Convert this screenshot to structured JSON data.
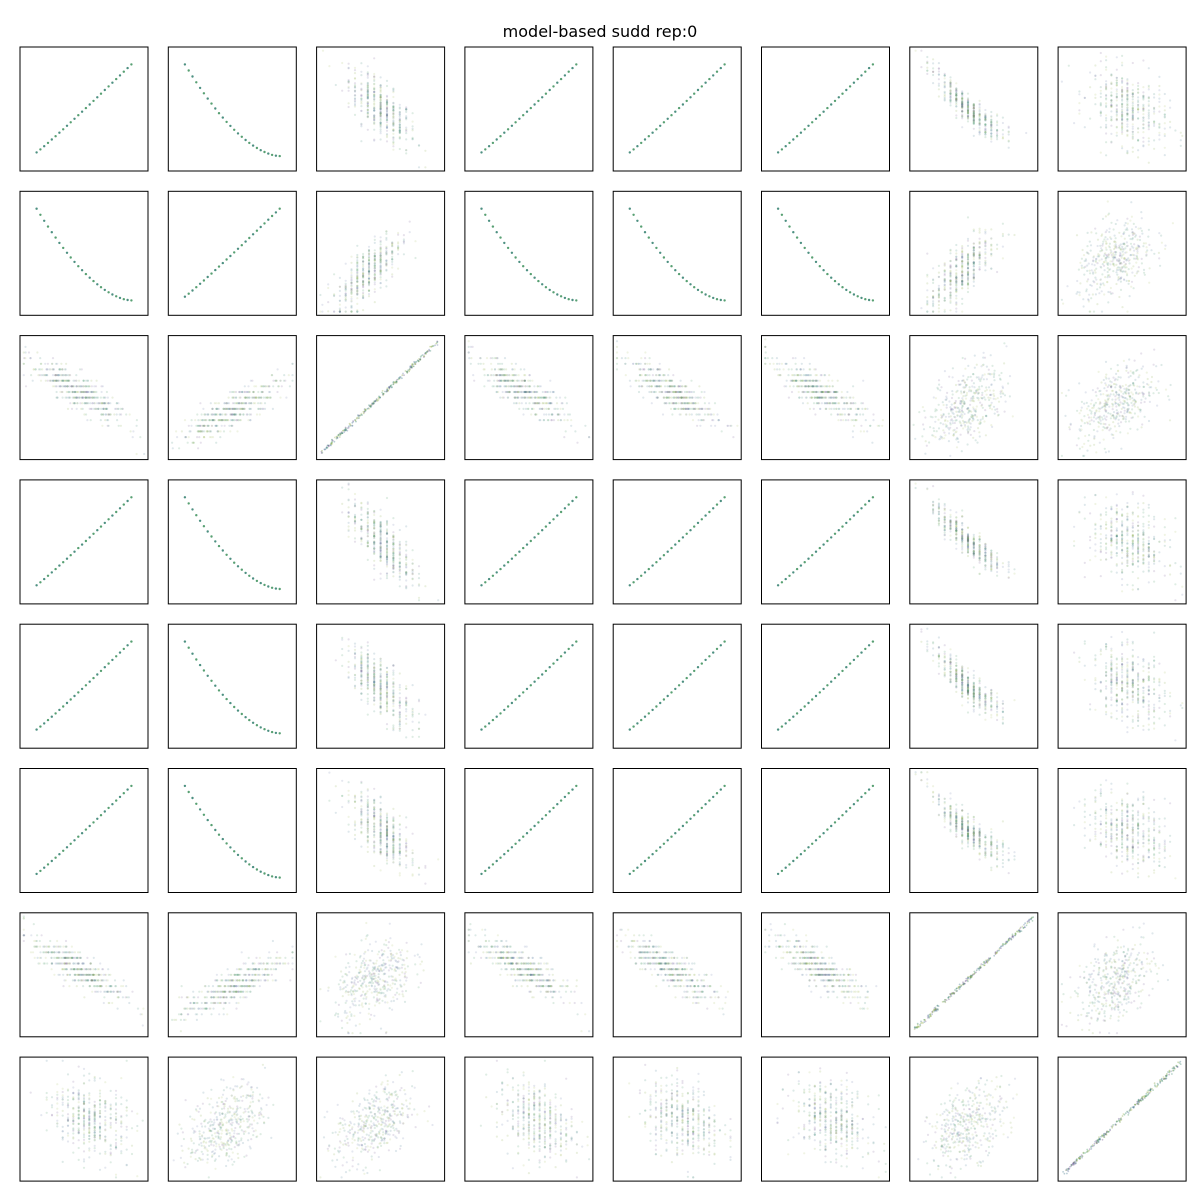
{
  "chart_data": {
    "type": "scatter",
    "title": "model-based sudd rep:0",
    "layout": "scatter-matrix",
    "rows": 8,
    "cols": 8,
    "axes_ticks": "none",
    "grid": false,
    "legend": "none",
    "point_colors": [
      "#2e7d6b",
      "#3b8f5a",
      "#7a9f3a",
      "#5b6fa0",
      "#6b4c8a",
      "#3a6f86",
      "#a3b85a"
    ],
    "panel_pairs": [
      [
        "pos",
        "neg",
        "tri",
        "pos",
        "pos",
        "pos",
        "negcurve",
        "negblob"
      ],
      [
        "neg",
        "pos",
        "poscurve",
        "neg",
        "neg",
        "neg",
        "poscurve",
        "posblob"
      ],
      [
        "negband",
        "posband",
        "diag",
        "negband",
        "negband",
        "negband",
        "posblob",
        "posblob"
      ],
      [
        "pos",
        "neg",
        "tri",
        "pos",
        "pos",
        "pos",
        "negcurve",
        "negblob"
      ],
      [
        "pos",
        "neg",
        "tri",
        "pos",
        "pos",
        "pos",
        "negcurve",
        "negblob"
      ],
      [
        "pos",
        "neg",
        "tri",
        "pos",
        "pos",
        "pos",
        "negcurve",
        "negblob"
      ],
      [
        "negband",
        "posband",
        "posblob",
        "negband",
        "negband",
        "negband",
        "diag",
        "posblob"
      ],
      [
        "negblob",
        "posblob",
        "posblob",
        "negblob",
        "negblob",
        "negblob",
        "posblob",
        "diag"
      ]
    ]
  }
}
